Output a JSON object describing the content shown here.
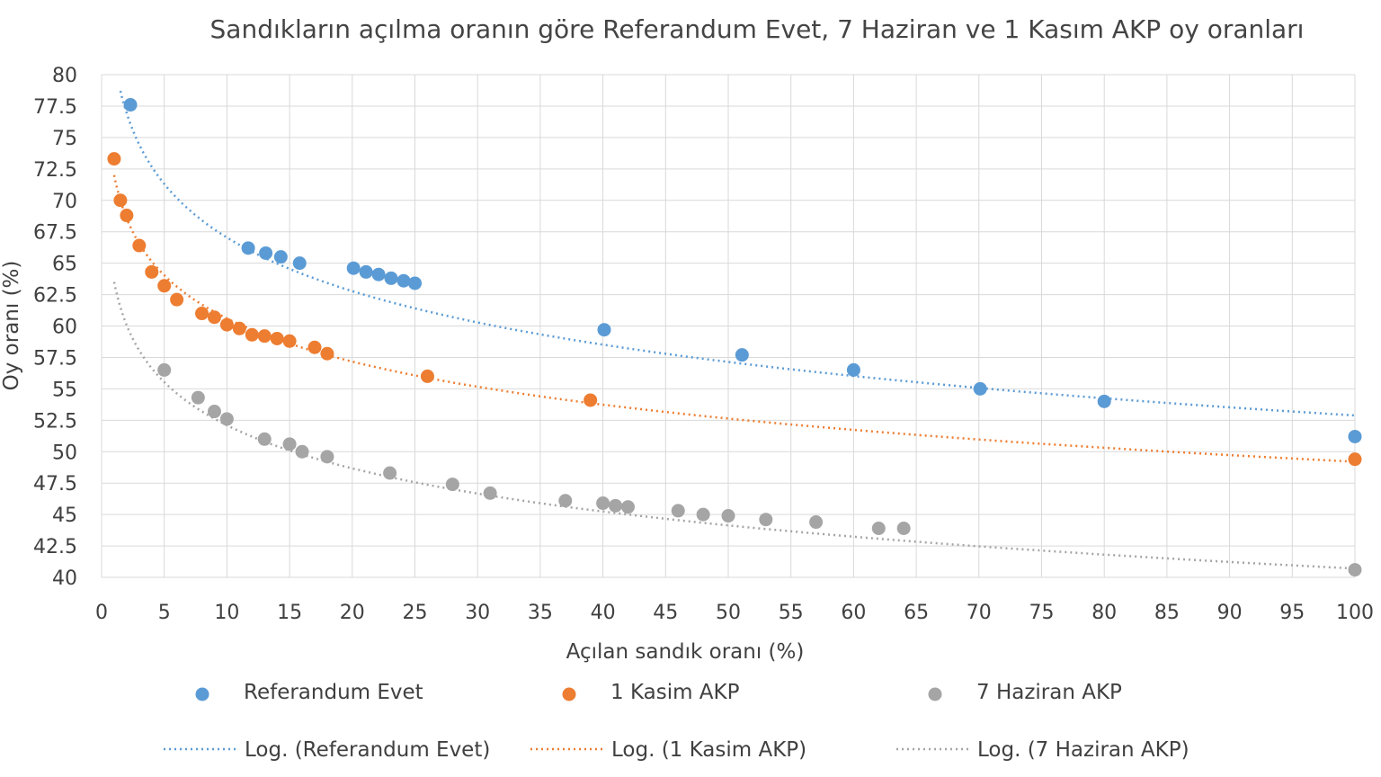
{
  "chart_data": {
    "type": "scatter",
    "title": "Sandıkların açılma oranın göre Referandum Evet, 7 Haziran ve 1 Kasım AKP oy oranları",
    "xlabel": "Açılan sandık oranı (%)",
    "ylabel": "Oy oranı (%)",
    "xlim": [
      0,
      100
    ],
    "ylim": [
      40,
      80
    ],
    "x_ticks": [
      "0",
      "5",
      "10",
      "15",
      "20",
      "25",
      "30",
      "35",
      "40",
      "45",
      "50",
      "55",
      "60",
      "65",
      "70",
      "75",
      "80",
      "85",
      "90",
      "95",
      "100"
    ],
    "y_ticks": [
      "40",
      "42.5",
      "45",
      "47.5",
      "50",
      "52.5",
      "55",
      "57.5",
      "60",
      "62.5",
      "65",
      "67.5",
      "70",
      "72.5",
      "75",
      "77.5",
      "80"
    ],
    "grid": true,
    "legend_position": "bottom",
    "series": [
      {
        "name": "Referandum Evet",
        "color": "#5b9bd5",
        "x": [
          2.3,
          11.7,
          13.1,
          14.3,
          15.8,
          20.1,
          21.1,
          22.1,
          23.1,
          24.1,
          25.0,
          40.1,
          51.1,
          60.0,
          70.1,
          80.0,
          100.0
        ],
        "y": [
          77.6,
          66.2,
          65.8,
          65.5,
          65.0,
          64.6,
          64.3,
          64.1,
          63.8,
          63.6,
          63.4,
          59.7,
          57.7,
          56.5,
          55.0,
          54.0,
          51.2
        ]
      },
      {
        "name": "1 Kasim AKP",
        "color": "#ed7d31",
        "x": [
          1.0,
          1.5,
          2.0,
          3.0,
          4.0,
          5.0,
          6.0,
          8.0,
          9.0,
          10.0,
          11.0,
          12.0,
          13.0,
          14.0,
          15.0,
          17.0,
          18.0,
          26.0,
          39.0,
          100.0
        ],
        "y": [
          73.3,
          70.0,
          68.8,
          66.4,
          64.3,
          63.2,
          62.1,
          61.0,
          60.7,
          60.1,
          59.8,
          59.3,
          59.2,
          59.0,
          58.8,
          58.3,
          57.8,
          56.0,
          54.1,
          49.4
        ]
      },
      {
        "name": "7 Haziran AKP",
        "color": "#a5a5a5",
        "x": [
          5.0,
          7.7,
          9.0,
          10.0,
          13.0,
          15.0,
          16.0,
          18.0,
          23.0,
          28.0,
          31.0,
          37.0,
          40.0,
          41.0,
          42.0,
          46.0,
          48.0,
          50.0,
          53.0,
          57.0,
          62.0,
          64.0,
          100.0
        ],
        "y": [
          56.5,
          54.3,
          53.2,
          52.6,
          51.0,
          50.6,
          50.0,
          49.6,
          48.3,
          47.4,
          46.7,
          46.1,
          45.9,
          45.7,
          45.6,
          45.3,
          45.0,
          44.9,
          44.6,
          44.4,
          43.9,
          43.9,
          40.6
        ]
      }
    ],
    "trendlines": [
      {
        "name": "Log. (Referandum Evet)",
        "color": "#5b9bd5",
        "type": "logarithmic",
        "a": 81.2,
        "b": -6.15,
        "x_from": 1.5,
        "x_to": 100
      },
      {
        "name": "Log. (1 Kasim AKP)",
        "color": "#ed7d31",
        "type": "logarithmic",
        "a": 72.0,
        "b": -4.95,
        "x_from": 1.0,
        "x_to": 100
      },
      {
        "name": "Log. (7 Haziran AKP)",
        "color": "#a5a5a5",
        "type": "logarithmic",
        "a": 63.5,
        "b": -4.95,
        "x_from": 1.0,
        "x_to": 100
      }
    ]
  }
}
